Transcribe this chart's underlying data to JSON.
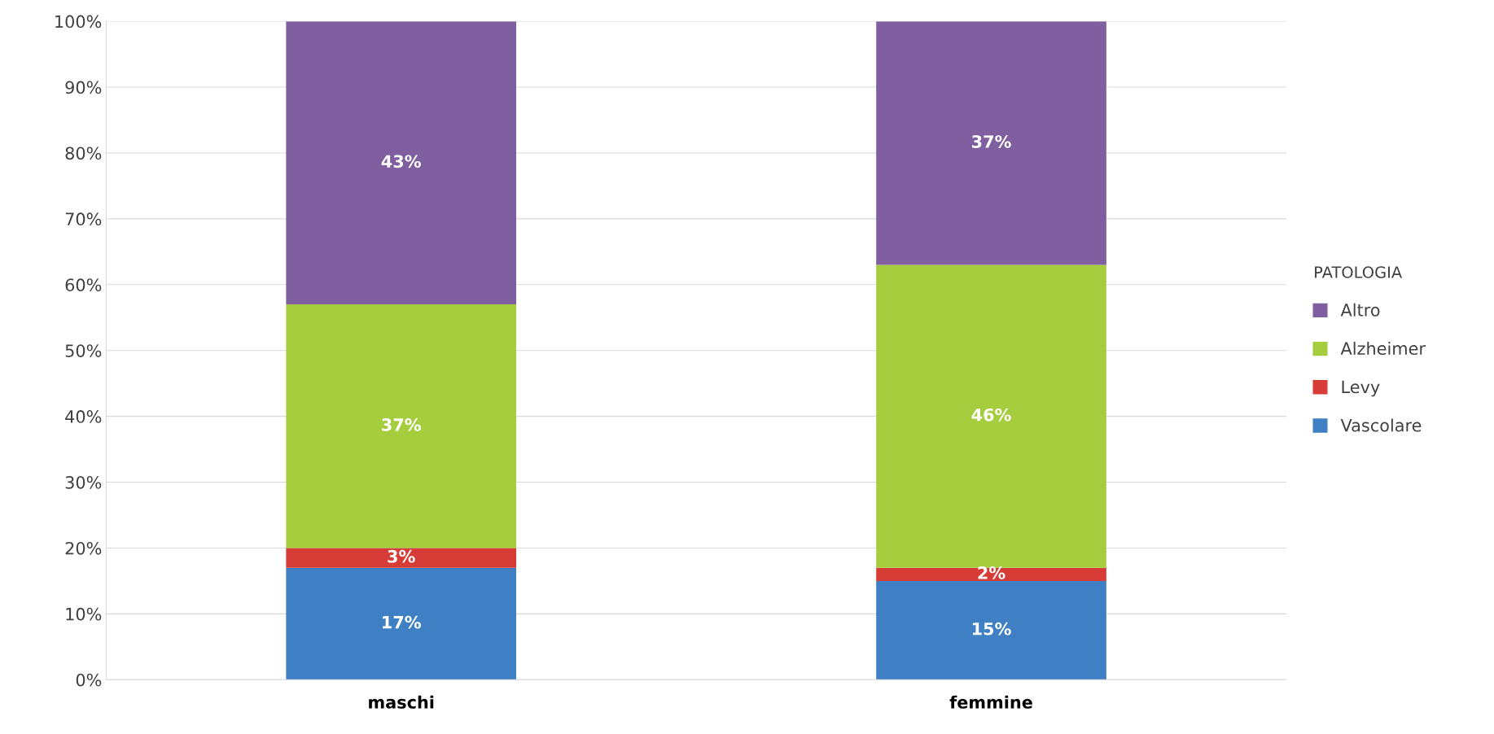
{
  "chart_data": {
    "type": "bar",
    "stacked": true,
    "categories": [
      "maschi",
      "femmine"
    ],
    "series": [
      {
        "name": "Vascolare",
        "color": "#3f80c4",
        "values": [
          17,
          15
        ],
        "value_labels": [
          "17%",
          "15%"
        ]
      },
      {
        "name": "Levy",
        "color": "#d83c36",
        "values": [
          3,
          2
        ],
        "value_labels": [
          "3%",
          "2%"
        ]
      },
      {
        "name": "Alzheimer",
        "color": "#a5cd3e",
        "values": [
          37,
          46
        ],
        "value_labels": [
          "37%",
          "46%"
        ]
      },
      {
        "name": "Altro",
        "color": "#7f5fa0",
        "values": [
          43,
          37
        ],
        "value_labels": [
          "43%",
          "37%"
        ]
      }
    ],
    "ylim": [
      0,
      100
    ],
    "yticks": [
      {
        "value": 0,
        "label": "0%"
      },
      {
        "value": 10,
        "label": "10%"
      },
      {
        "value": 20,
        "label": "20%"
      },
      {
        "value": 30,
        "label": "30%"
      },
      {
        "value": 40,
        "label": "40%"
      },
      {
        "value": 50,
        "label": "50%"
      },
      {
        "value": 60,
        "label": "60%"
      },
      {
        "value": 70,
        "label": "70%"
      },
      {
        "value": 80,
        "label": "80%"
      },
      {
        "value": 90,
        "label": "90%"
      },
      {
        "value": 100,
        "label": "100%"
      }
    ],
    "grid": "y",
    "legend": "right",
    "legend_title": "PATOLOGIA"
  }
}
